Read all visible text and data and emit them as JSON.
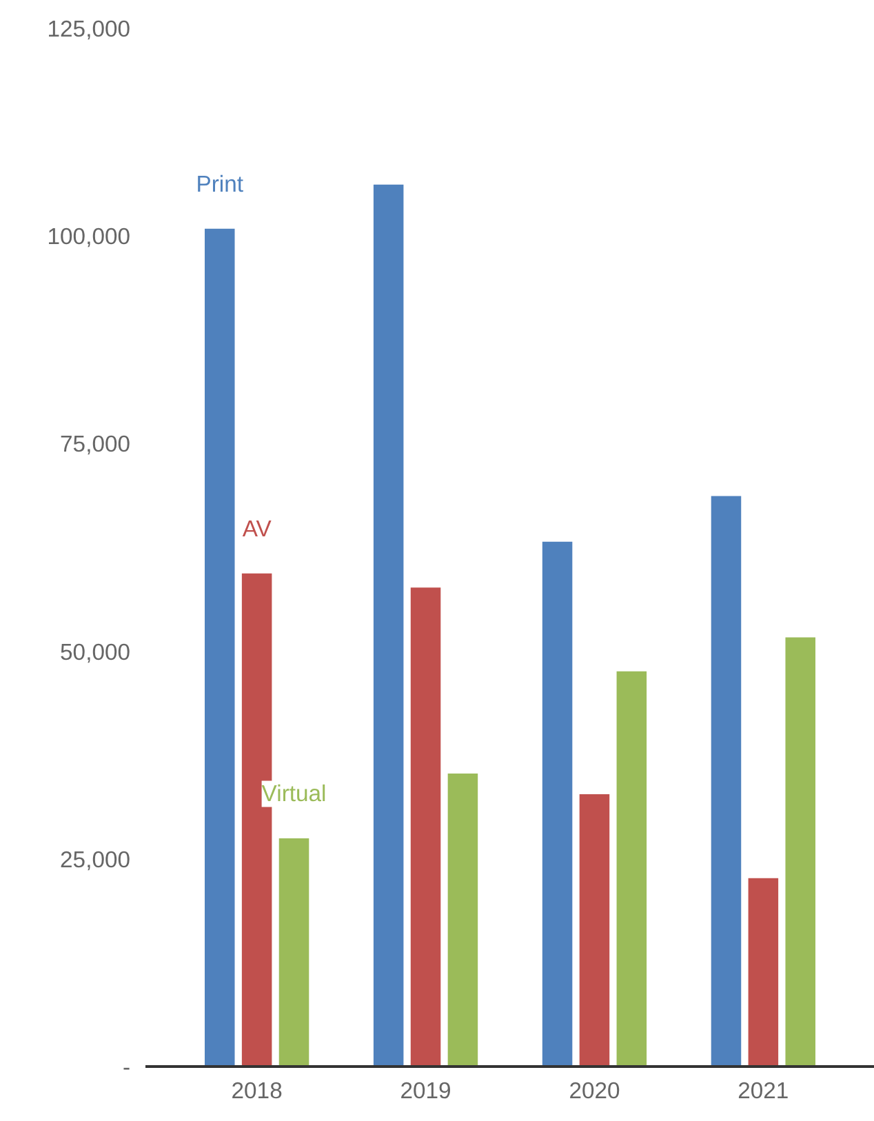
{
  "chart_data": {
    "type": "bar",
    "categories": [
      "2018",
      "2019",
      "2020",
      "2021"
    ],
    "series": [
      {
        "name": "Print",
        "color": "#4f81bd",
        "values": [
          101000,
          106300,
          63300,
          68800
        ]
      },
      {
        "name": "AV",
        "color": "#c0504d",
        "values": [
          59500,
          57800,
          32900,
          22800
        ]
      },
      {
        "name": "Virtual",
        "color": "#9bbb59",
        "values": [
          27600,
          35400,
          47700,
          51800
        ]
      }
    ],
    "ylim": [
      0,
      125000
    ],
    "yticks": [
      {
        "value": 0,
        "label": "-"
      },
      {
        "value": 25000,
        "label": "25,000"
      },
      {
        "value": 50000,
        "label": "50,000"
      },
      {
        "value": 75000,
        "label": "75,000"
      },
      {
        "value": 100000,
        "label": "100,000"
      },
      {
        "value": 125000,
        "label": "125,000"
      }
    ],
    "grid": false
  }
}
